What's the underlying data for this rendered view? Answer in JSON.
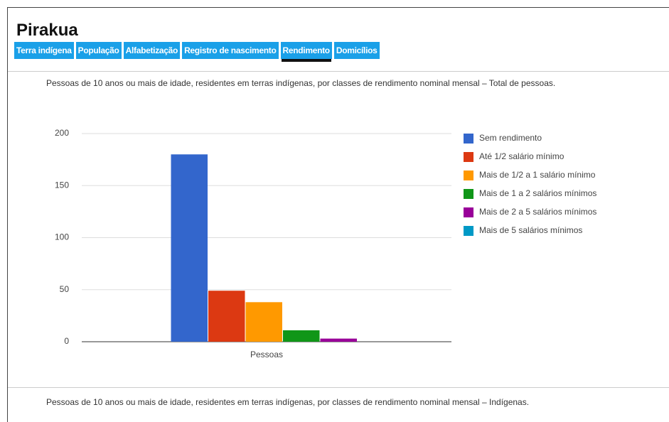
{
  "header": {
    "title": "Pirakua"
  },
  "tabs": [
    "Terra indígena",
    "População",
    "Alfabetização",
    "Registro de nascimento",
    "Rendimento",
    "Domicílios"
  ],
  "active_tab_index": 4,
  "caption": "Pessoas de 10 anos ou mais de idade, residentes em terras indígenas, por classes de rendimento nominal mensal – Total de pessoas.",
  "next_caption": "Pessoas de 10 anos ou mais de idade, residentes em terras indígenas, por classes de rendimento nominal mensal – Indígenas.",
  "chart_data": {
    "type": "bar",
    "categories": [
      "Pessoas"
    ],
    "series": [
      {
        "name": "Sem rendimento",
        "color": "#3366cc",
        "values": [
          180
        ]
      },
      {
        "name": "Até 1/2 salário mínimo",
        "color": "#dc3912",
        "values": [
          49
        ]
      },
      {
        "name": "Mais de 1/2 a 1 salário mínimo",
        "color": "#ff9900",
        "values": [
          38
        ]
      },
      {
        "name": "Mais de 1 a 2 salários mínimos",
        "color": "#109618",
        "values": [
          11
        ]
      },
      {
        "name": "Mais de 2 a 5 salários mínimos",
        "color": "#990099",
        "values": [
          3
        ]
      },
      {
        "name": "Mais de 5 salários mínimos",
        "color": "#0099c6",
        "values": [
          0
        ]
      }
    ],
    "ylim": [
      0,
      200
    ],
    "yticks": [
      0,
      50,
      100,
      150,
      200
    ],
    "grid": true,
    "legend": "right"
  }
}
